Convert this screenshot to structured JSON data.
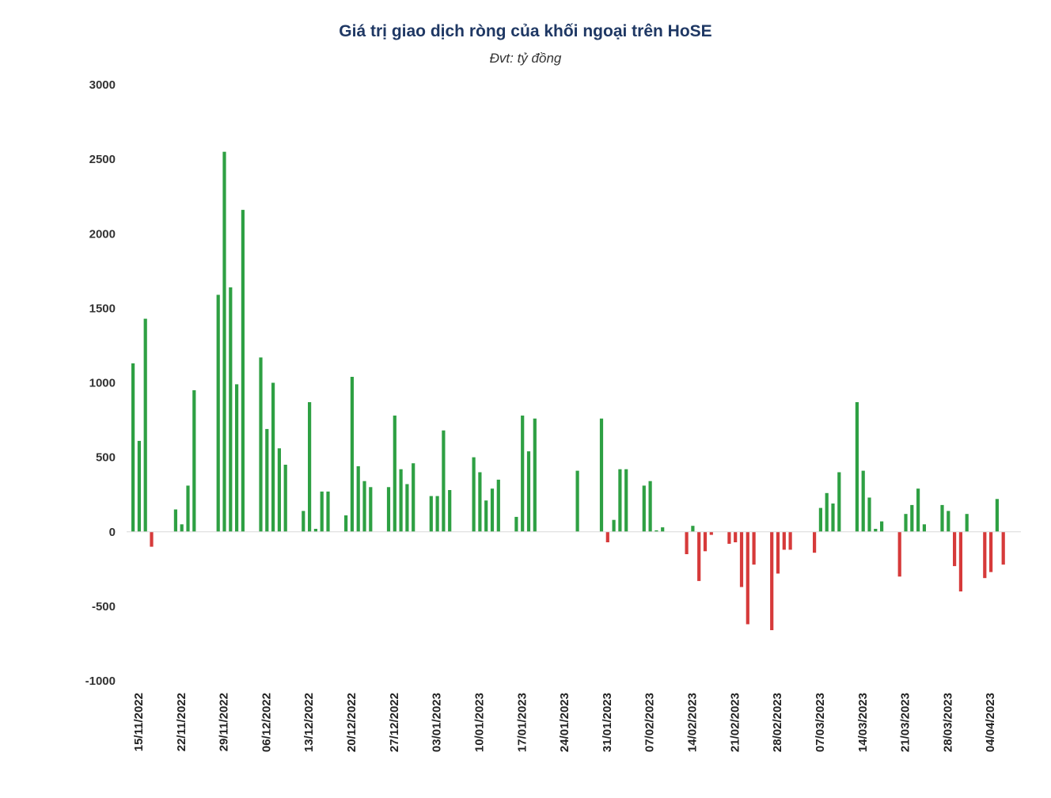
{
  "chart_data": {
    "type": "bar",
    "title": "Giá trị giao dịch ròng của khối ngoại trên HoSE",
    "subtitle": "Đvt: tỷ đồng",
    "xlabel": "",
    "ylabel": "",
    "ylim": [
      -1000,
      3000
    ],
    "yticks": [
      3000,
      2500,
      2000,
      1500,
      1000,
      500,
      0,
      -500,
      -1000
    ],
    "grid": false,
    "legend": "none",
    "colors": {
      "positive": "#2ea043",
      "negative": "#d63a3a",
      "axis": "#d9d9d9"
    },
    "week_labels": [
      "15/11/2022",
      "22/11/2022",
      "29/11/2022",
      "06/12/2022",
      "13/12/2022",
      "20/12/2022",
      "27/12/2022",
      "03/01/2023",
      "10/01/2023",
      "17/01/2023",
      "24/01/2023",
      "31/01/2023",
      "07/02/2023",
      "14/02/2023",
      "21/02/2023",
      "28/02/2023",
      "07/03/2023",
      "14/03/2023",
      "21/03/2023",
      "28/03/2023",
      "04/04/2023"
    ],
    "weeks": [
      [
        1130,
        610,
        1430,
        -100,
        null
      ],
      [
        150,
        50,
        310,
        950,
        null
      ],
      [
        1590,
        2550,
        1640,
        990,
        2160
      ],
      [
        1170,
        690,
        1000,
        560,
        450
      ],
      [
        140,
        870,
        20,
        270,
        270
      ],
      [
        110,
        1040,
        440,
        340,
        300
      ],
      [
        300,
        780,
        420,
        320,
        460
      ],
      [
        240,
        240,
        680,
        280,
        null
      ],
      [
        500,
        400,
        210,
        290,
        350
      ],
      [
        100,
        780,
        540,
        760,
        null
      ],
      [
        null,
        null,
        null,
        410,
        null
      ],
      [
        760,
        -70,
        80,
        420,
        420
      ],
      [
        310,
        340,
        10,
        30,
        null
      ],
      [
        -150,
        40,
        -330,
        -130,
        -20
      ],
      [
        -80,
        -70,
        -370,
        -620,
        -220
      ],
      [
        -660,
        -280,
        -120,
        -120,
        null
      ],
      [
        -140,
        160,
        260,
        190,
        400
      ],
      [
        870,
        410,
        230,
        20,
        70
      ],
      [
        -300,
        120,
        180,
        290,
        50
      ],
      [
        180,
        140,
        -230,
        -400,
        120
      ],
      [
        -310,
        -270,
        220,
        -220,
        null
      ]
    ]
  }
}
